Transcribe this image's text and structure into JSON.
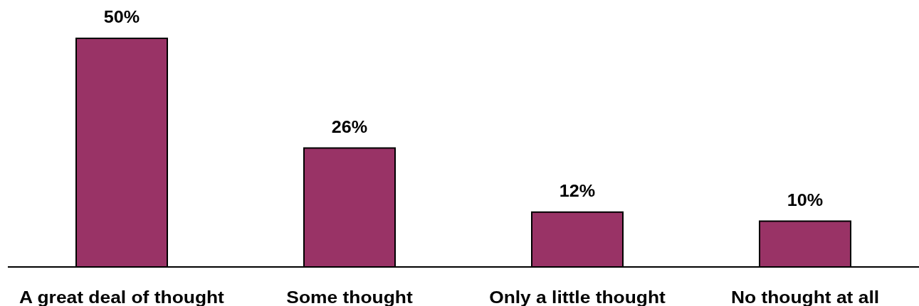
{
  "chart_data": {
    "type": "bar",
    "categories": [
      "A great deal of thought",
      "Some thought",
      "Only a little thought",
      "No thought at all"
    ],
    "values": [
      50,
      26,
      12,
      10
    ],
    "color": "#993366",
    "value_labels": [
      "50%",
      "26%",
      "12%",
      "10%"
    ]
  }
}
